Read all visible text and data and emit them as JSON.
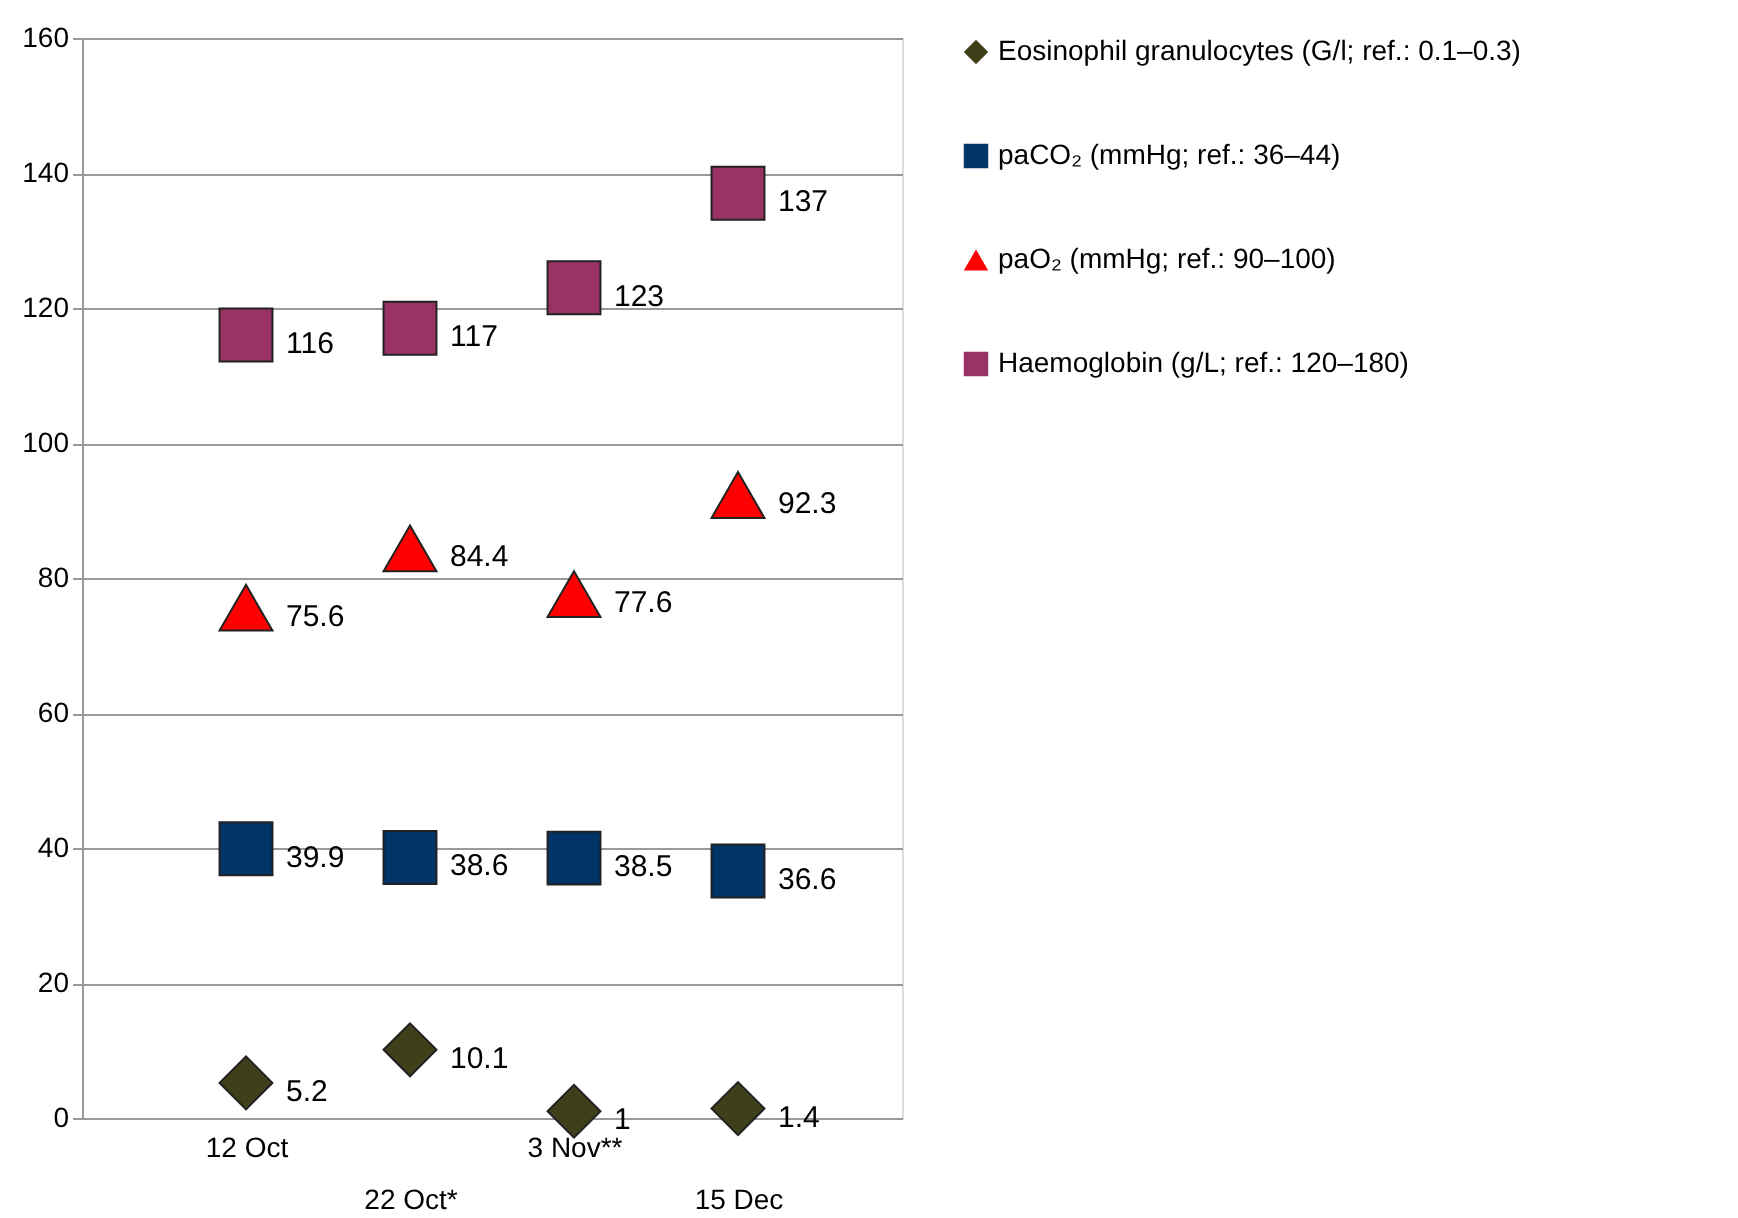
{
  "chart_data": {
    "type": "scatter",
    "categories": [
      "12 Oct",
      "22 Oct*",
      "3 Nov**",
      "15 Dec"
    ],
    "series": [
      {
        "name": "Eosinophil granulocytes (G/l; ref.: 0.1–0.3)",
        "color": "#3f401a",
        "marker": "diamond",
        "values": [
          5.2,
          10.1,
          1,
          1.4
        ]
      },
      {
        "name": "paCO₂ (mmHg; ref.: 36–44)",
        "color": "#003366",
        "marker": "square",
        "values": [
          39.9,
          38.6,
          38.5,
          36.6
        ]
      },
      {
        "name": "paO₂ (mmHg; ref.: 90–100)",
        "color": "#ff0000",
        "marker": "triangle",
        "values": [
          75.6,
          84.4,
          77.6,
          92.3
        ]
      },
      {
        "name": "Haemoglobin (g/L; ref.: 120–180)",
        "color": "#993366",
        "marker": "square",
        "values": [
          116,
          117,
          123,
          137
        ]
      }
    ],
    "ylim": [
      0,
      160
    ],
    "yticks": [
      0,
      20,
      40,
      60,
      80,
      100,
      120,
      140,
      160
    ],
    "grid": "y",
    "legend": "right",
    "data_labels": true
  }
}
